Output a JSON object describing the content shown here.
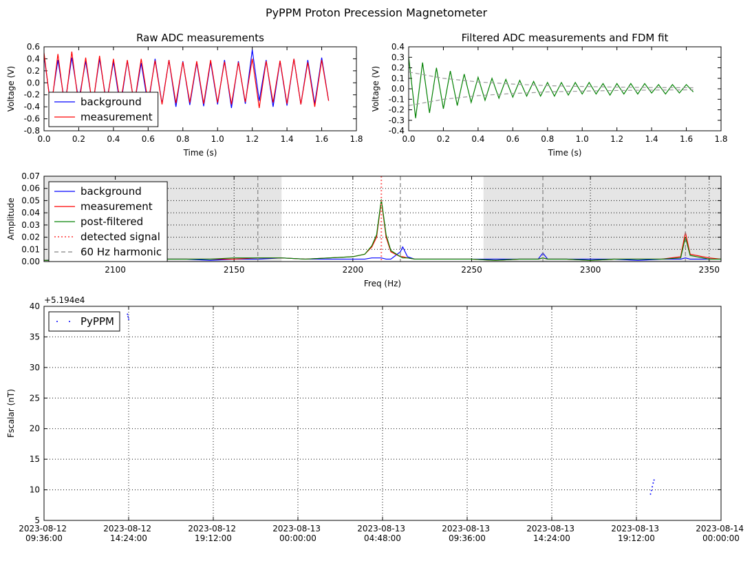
{
  "title": "PyPPM Proton Precession Magnetometer",
  "chart_data": [
    {
      "type": "line",
      "title": "Raw ADC measurements",
      "x_label": "Time (s)",
      "y_label": "Voltage (V)",
      "x": [
        0,
        0.04,
        0.08,
        0.12,
        0.16,
        0.2,
        0.24,
        0.28,
        0.32,
        0.36,
        0.4,
        0.44,
        0.48,
        0.52,
        0.56,
        0.6,
        0.64,
        0.68,
        0.72,
        0.76,
        0.8,
        0.84,
        0.88,
        0.92,
        0.96,
        1,
        1.04,
        1.08,
        1.12,
        1.16,
        1.2,
        1.24,
        1.28,
        1.32,
        1.36,
        1.4,
        1.44,
        1.48,
        1.52,
        1.56,
        1.6,
        1.64
      ],
      "series": [
        {
          "name": "background",
          "color": "#0000ff",
          "values": [
            0.45,
            -0.4,
            0.38,
            -0.35,
            0.42,
            -0.3,
            0.36,
            -0.38,
            0.4,
            -0.33,
            0.35,
            -0.4,
            0.37,
            -0.36,
            0.33,
            -0.38,
            0.4,
            -0.35,
            0.38,
            -0.4,
            0.36,
            -0.37,
            0.34,
            -0.39,
            0.35,
            -0.36,
            0.38,
            -0.42,
            0.36,
            -0.35,
            0.55,
            -0.3,
            0.38,
            -0.4,
            0.36,
            -0.38,
            0.4,
            -0.36,
            0.38,
            -0.35,
            0.42,
            -0.3
          ]
        },
        {
          "name": "measurement",
          "color": "#ff0000",
          "values": [
            0.5,
            -0.45,
            0.48,
            -0.42,
            0.52,
            -0.38,
            0.42,
            -0.4,
            0.45,
            -0.38,
            0.4,
            -0.35,
            0.38,
            -0.36,
            0.4,
            -0.33,
            0.37,
            -0.36,
            0.38,
            -0.34,
            0.35,
            -0.33,
            0.36,
            -0.35,
            0.38,
            -0.33,
            0.35,
            -0.36,
            0.34,
            -0.32,
            0.4,
            -0.42,
            0.36,
            -0.33,
            0.37,
            -0.35,
            0.4,
            -0.36,
            0.34,
            -0.4,
            0.38,
            -0.3
          ]
        }
      ],
      "xlim": [
        0,
        1.8
      ],
      "xticks": [
        {
          "value": 0,
          "label": "0.0"
        },
        0.2,
        0.4,
        0.6,
        0.8,
        {
          "value": 1,
          "label": "1.0"
        },
        1.2,
        1.4,
        1.6,
        1.8
      ],
      "ylim": [
        -0.8,
        0.6
      ],
      "yticks": [
        -0.8,
        -0.6,
        -0.4,
        -0.2,
        {
          "value": 0,
          "label": "0.0"
        },
        0.2,
        0.4,
        0.6
      ],
      "grid": false,
      "legend": "lower left"
    },
    {
      "type": "line",
      "title": "Filtered ADC measurements and FDM fit",
      "x_label": "Time (s)",
      "y_label": "Voltage (V)",
      "x": [
        0,
        0.04,
        0.08,
        0.12,
        0.16,
        0.2,
        0.24,
        0.28,
        0.32,
        0.36,
        0.4,
        0.44,
        0.48,
        0.52,
        0.56,
        0.6,
        0.64,
        0.68,
        0.72,
        0.76,
        0.8,
        0.84,
        0.88,
        0.92,
        0.96,
        1,
        1.04,
        1.08,
        1.12,
        1.16,
        1.2,
        1.24,
        1.28,
        1.32,
        1.36,
        1.4,
        1.44,
        1.48,
        1.52,
        1.56,
        1.6,
        1.64
      ],
      "series": [
        {
          "color": "#008000",
          "values": [
            0.3,
            -0.28,
            0.25,
            -0.23,
            0.2,
            -0.19,
            0.17,
            -0.16,
            0.14,
            -0.13,
            0.11,
            -0.11,
            0.1,
            -0.09,
            0.09,
            -0.08,
            0.08,
            -0.07,
            0.07,
            -0.07,
            0.06,
            -0.07,
            0.06,
            -0.06,
            0.06,
            -0.05,
            0.06,
            -0.05,
            0.05,
            -0.06,
            0.05,
            -0.05,
            0.05,
            -0.05,
            0.05,
            -0.04,
            0.04,
            -0.05,
            0.04,
            -0.04,
            0.04,
            -0.03
          ]
        },
        {
          "color": "#999999",
          "linestyle": "dashed",
          "x": [
            0,
            0.2,
            0.4,
            0.6,
            0.8,
            1,
            1.2,
            1.4,
            1.64
          ],
          "values": [
            0.16,
            0.1,
            0.065,
            0.045,
            0.03,
            0.022,
            0.016,
            0.012,
            0.01
          ]
        },
        {
          "color": "#999999",
          "linestyle": "dashed",
          "x": [
            0,
            0.2,
            0.4,
            0.6,
            0.8,
            1,
            1.2,
            1.4,
            1.64
          ],
          "values": [
            -0.16,
            -0.1,
            -0.065,
            -0.045,
            -0.03,
            -0.022,
            -0.016,
            -0.012,
            -0.01
          ]
        }
      ],
      "xlim": [
        0,
        1.8
      ],
      "xticks": [
        {
          "value": 0,
          "label": "0.0"
        },
        0.2,
        0.4,
        0.6,
        0.8,
        {
          "value": 1,
          "label": "1.0"
        },
        1.2,
        1.4,
        1.6,
        1.8
      ],
      "ylim": [
        -0.4,
        0.4
      ],
      "yticks": [
        -0.4,
        -0.3,
        -0.2,
        -0.1,
        {
          "value": 0,
          "label": "0.0"
        },
        0.1,
        0.2,
        0.3,
        0.4
      ],
      "grid": false
    },
    {
      "type": "line",
      "x_label": "Freq (Hz)",
      "y_label": "Amplitude",
      "x": [
        2070,
        2080,
        2090,
        2100,
        2110,
        2120,
        2130,
        2140,
        2150,
        2160,
        2170,
        2180,
        2190,
        2200,
        2205,
        2208,
        2210,
        2212,
        2214,
        2216,
        2220,
        2221,
        2223,
        2226,
        2230,
        2240,
        2250,
        2260,
        2270,
        2278,
        2280,
        2282,
        2290,
        2300,
        2310,
        2320,
        2330,
        2338,
        2340,
        2342,
        2350,
        2355
      ],
      "spans": [
        [
          2070,
          2170
        ],
        [
          2255,
          2355
        ]
      ],
      "span_color": "#e5e5e5",
      "series": [
        {
          "name": "background",
          "color": "#0000ff",
          "values": [
            0.001,
            0.002,
            0.001,
            0.002,
            0.001,
            0.002,
            0.002,
            0.001,
            0.002,
            0.002,
            0.003,
            0.002,
            0.002,
            0.002,
            0.002,
            0.003,
            0.003,
            0.003,
            0.002,
            0.002,
            0.008,
            0.012,
            0.004,
            0.002,
            0.002,
            0.002,
            0.002,
            0.002,
            0.002,
            0.002,
            0.007,
            0.002,
            0.002,
            0.002,
            0.002,
            0.001,
            0.002,
            0.002,
            0.003,
            0.002,
            0.002,
            0.002
          ]
        },
        {
          "name": "measurement",
          "color": "#ff0000",
          "values": [
            0.001,
            0.001,
            0.001,
            0.002,
            0.002,
            0.002,
            0.002,
            0.002,
            0.002,
            0.003,
            0.003,
            0.002,
            0.003,
            0.004,
            0.006,
            0.012,
            0.02,
            0.05,
            0.02,
            0.008,
            0.004,
            0.004,
            0.003,
            0.002,
            0.002,
            0.002,
            0.002,
            0.001,
            0.002,
            0.002,
            0.003,
            0.002,
            0.002,
            0.001,
            0.002,
            0.002,
            0.002,
            0.004,
            0.024,
            0.006,
            0.003,
            0.002
          ]
        },
        {
          "name": "post-filtered",
          "color": "#008000",
          "values": [
            0.001,
            0.001,
            0.001,
            0.002,
            0.002,
            0.002,
            0.002,
            0.002,
            0.003,
            0.003,
            0.003,
            0.002,
            0.003,
            0.004,
            0.006,
            0.013,
            0.022,
            0.051,
            0.022,
            0.009,
            0.004,
            0.003,
            0.003,
            0.002,
            0.002,
            0.002,
            0.002,
            0.001,
            0.002,
            0.002,
            0.003,
            0.002,
            0.002,
            0.001,
            0.002,
            0.002,
            0.002,
            0.003,
            0.02,
            0.005,
            0.002,
            0.002
          ]
        },
        {
          "name": "detected signal",
          "color": "#ff6666",
          "linestyle": "dotted",
          "x": [
            2212
          ]
        },
        {
          "name": "60 Hz harmonic",
          "color": "#808080",
          "linestyle": "dashed",
          "x": [
            2160,
            2220,
            2280,
            2340
          ]
        }
      ],
      "xlim": [
        2070,
        2355
      ],
      "xticks": [
        2100,
        2150,
        2200,
        2250,
        2300,
        2350
      ],
      "ylim": [
        0,
        0.07
      ],
      "yticks": [
        {
          "value": 0,
          "label": "0.00"
        },
        0.01,
        0.02,
        0.03,
        0.04,
        0.05,
        0.06,
        0.07
      ],
      "grid": true,
      "legend": "upper left"
    },
    {
      "type": "scatter",
      "y_label": "Fscalar (nT)",
      "y_offset_label": "+5.194e4",
      "series": [
        {
          "name": "PyPPM",
          "color": "#0000ff",
          "x": [
            "2023-08-12 14:20:00",
            "2023-08-12 14:22:00",
            "2023-08-12 14:24:00",
            "2023-08-13 20:00:00",
            "2023-08-13 20:03:00",
            "2023-08-13 20:06:00",
            "2023-08-13 20:09:00",
            "2023-08-13 20:12:00"
          ],
          "values": [
            38.7,
            38.3,
            37.9,
            9.3,
            9.9,
            10.5,
            11.1,
            11.6
          ]
        }
      ],
      "xlim": [
        "2023-08-12 09:36:00",
        "2023-08-14 00:00:00"
      ],
      "xticks": [
        "2023-08-12 09:36:00",
        "2023-08-12 14:24:00",
        "2023-08-12 19:12:00",
        "2023-08-13 00:00:00",
        "2023-08-13 04:48:00",
        "2023-08-13 09:36:00",
        "2023-08-13 14:24:00",
        "2023-08-13 19:12:00",
        "2023-08-14 00:00:00"
      ],
      "ylim": [
        5,
        40
      ],
      "yticks": [
        5,
        10,
        15,
        20,
        25,
        30,
        35,
        40
      ],
      "grid": true,
      "legend": "upper left"
    }
  ]
}
